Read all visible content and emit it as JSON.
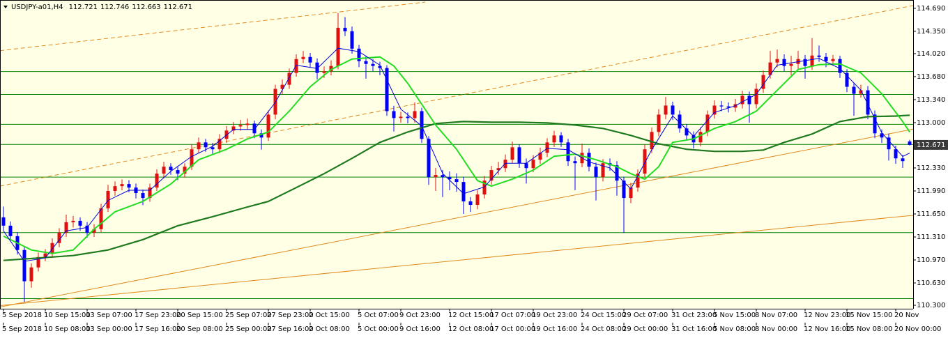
{
  "chart_data": {
    "type": "candlestick",
    "title": "USDJPY-a01,H4",
    "background": "#ffffe6",
    "up_color": "#e01010",
    "down_color": "#0000ff",
    "ylim": [
      110.249,
      114.813
    ],
    "yticks": [
      {
        "value": 114.69,
        "label": "114.690"
      },
      {
        "value": 114.35,
        "label": "114.350"
      },
      {
        "value": 114.02,
        "label": "114.020"
      },
      {
        "value": 113.68,
        "label": "113.680"
      },
      {
        "value": 113.34,
        "label": "113.340"
      },
      {
        "value": 113.0,
        "label": "113.000"
      },
      {
        "value": 112.33,
        "label": "112.330"
      },
      {
        "value": 111.99,
        "label": "111.990"
      },
      {
        "value": 111.65,
        "label": "111.650"
      },
      {
        "value": 111.31,
        "label": "111.310"
      },
      {
        "value": 110.97,
        "label": "110.970"
      },
      {
        "value": 110.63,
        "label": "110.630"
      },
      {
        "value": 110.3,
        "label": "110.300"
      }
    ],
    "categories_top": [
      "5 Sep 2018",
      null,
      null,
      null,
      null,
      null,
      "10 Sep 15:00",
      null,
      null,
      null,
      null,
      null,
      "13 Sep 07:00",
      null,
      null,
      null,
      null,
      null,
      null,
      "17 Sep 23:00",
      null,
      null,
      null,
      null,
      null,
      "20 Sep 15:00",
      null,
      null,
      null,
      null,
      null,
      null,
      "25 Sep 07:00",
      null,
      null,
      null,
      null,
      null,
      "27 Sep 23:00",
      null,
      null,
      null,
      null,
      null,
      "2 Oct 15:00",
      null,
      null,
      null,
      null,
      null,
      null,
      "5 Oct 07:00",
      null,
      null,
      null,
      null,
      null,
      "9 Oct 23:00",
      null,
      null,
      null,
      null,
      null,
      null,
      "12 Oct 15:00",
      null,
      null,
      null,
      null,
      null,
      "17 Oct 07:00",
      null,
      null,
      null,
      null,
      null,
      "19 Oct 23:00",
      null,
      null,
      null,
      null,
      null,
      null,
      "24 Oct 15:00",
      null,
      null,
      null,
      null,
      null,
      "29 Oct 07:00",
      null,
      null,
      null,
      null,
      null,
      null,
      "31 Oct 23:00",
      null,
      null,
      null,
      null,
      null,
      "5 Nov 15:00",
      null,
      null,
      null,
      null,
      null,
      "8 Nov 07:00",
      null,
      null,
      null,
      null,
      null,
      null,
      "12 Nov 23:00",
      null,
      null,
      null,
      null,
      null,
      "15 Nov 15:00",
      null,
      null,
      null,
      null,
      null,
      null,
      "20 Nov",
      null,
      null
    ],
    "categories": [
      "5 Sep 2018",
      null,
      null,
      null,
      null,
      null,
      "10 Sep 08:00",
      null,
      null,
      null,
      null,
      null,
      "13 Sep 00:00",
      null,
      null,
      null,
      null,
      null,
      null,
      "17 Sep 16:00",
      null,
      null,
      null,
      null,
      null,
      "20 Sep 08:00",
      null,
      null,
      null,
      null,
      null,
      null,
      "25 Sep 00:00",
      null,
      null,
      null,
      null,
      null,
      "27 Sep 16:00",
      null,
      null,
      null,
      null,
      null,
      "2 Oct 08:00",
      null,
      null,
      null,
      null,
      null,
      null,
      "5 Oct 00:00",
      null,
      null,
      null,
      null,
      null,
      "9 Oct 16:00",
      null,
      null,
      null,
      null,
      null,
      null,
      "12 Oct 08:00",
      null,
      null,
      null,
      null,
      null,
      "17 Oct 00:00",
      null,
      null,
      null,
      null,
      null,
      "19 Oct 16:00",
      null,
      null,
      null,
      null,
      null,
      null,
      "24 Oct 08:00",
      null,
      null,
      null,
      null,
      null,
      "29 Oct 00:00",
      null,
      null,
      null,
      null,
      null,
      null,
      "31 Oct 16:00",
      null,
      null,
      null,
      null,
      null,
      "5 Nov 08:00",
      null,
      null,
      null,
      null,
      null,
      "8 Nov 00:00",
      null,
      null,
      null,
      null,
      null,
      null,
      "12 Nov 16:00",
      null,
      null,
      null,
      null,
      null,
      "15 Nov 08:00",
      null,
      null,
      null,
      null,
      null,
      null,
      "20 Nov 00:00",
      null,
      null
    ],
    "open": [
      111.6,
      111.477,
      111.322,
      111.117,
      110.655,
      110.86,
      111.014,
      111.066,
      111.22,
      111.374,
      111.528,
      111.548,
      111.477,
      111.374,
      111.425,
      111.733,
      111.99,
      112.061,
      112.092,
      112.04,
      111.959,
      111.886,
      112.04,
      112.246,
      112.349,
      112.298,
      112.246,
      112.349,
      112.606,
      112.708,
      112.636,
      112.606,
      112.76,
      112.883,
      112.944,
      112.965,
      112.986,
      112.842,
      112.78,
      113.119,
      113.499,
      113.56,
      113.735,
      113.94,
      113.971,
      113.889,
      113.735,
      113.76,
      113.838,
      114.402,
      114.351,
      114.094,
      113.909,
      113.868,
      113.838,
      113.807,
      113.17,
      113.068,
      113.088,
      113.068,
      113.17,
      112.76,
      112.195,
      112.226,
      112.195,
      112.164,
      112.123,
      111.836,
      111.784,
      111.938,
      112.143,
      112.298,
      112.328,
      112.452,
      112.636,
      112.4,
      112.328,
      112.452,
      112.554,
      112.708,
      112.811,
      112.708,
      112.431,
      112.4,
      112.554,
      112.349,
      112.195,
      112.4,
      112.369,
      112.143,
      111.886,
      112.04,
      112.246,
      112.606,
      112.862,
      113.119,
      113.253,
      113.119,
      112.914,
      112.811,
      112.708,
      112.862,
      113.119,
      113.253,
      113.24,
      113.222,
      113.273,
      113.397,
      113.273,
      113.499,
      113.704,
      113.889,
      113.94,
      113.838,
      113.868,
      113.94,
      113.838,
      113.992,
      113.971,
      113.909,
      113.94,
      113.735,
      113.53,
      113.427,
      113.478,
      113.119,
      112.842,
      112.78,
      112.606,
      112.472,
      112.721
    ],
    "high": [
      111.76,
      111.54,
      111.38,
      111.17,
      110.92,
      111.08,
      111.13,
      111.29,
      111.44,
      111.64,
      111.62,
      111.6,
      111.53,
      111.5,
      111.8,
      112.08,
      112.13,
      112.16,
      112.15,
      112.1,
      112.01,
      112.1,
      112.31,
      112.42,
      112.4,
      112.35,
      112.4,
      112.68,
      112.78,
      112.76,
      112.7,
      112.83,
      112.95,
      113.01,
      113.04,
      113.06,
      113.03,
      112.9,
      113.18,
      113.56,
      113.64,
      113.8,
      114.01,
      114.06,
      114.03,
      113.95,
      113.83,
      113.92,
      114.62,
      114.56,
      114.42,
      114.15,
      113.99,
      113.94,
      113.9,
      113.85,
      113.25,
      113.16,
      113.15,
      113.3,
      113.22,
      112.8,
      112.33,
      112.3,
      112.28,
      112.25,
      112.2,
      111.9,
      112.0,
      112.21,
      112.36,
      112.42,
      112.53,
      112.72,
      112.68,
      112.47,
      112.52,
      112.63,
      112.77,
      112.88,
      112.86,
      112.76,
      112.5,
      112.69,
      112.62,
      112.41,
      112.46,
      112.47,
      112.43,
      112.2,
      112.11,
      112.31,
      112.68,
      112.93,
      113.2,
      113.38,
      113.31,
      113.18,
      112.98,
      112.87,
      112.93,
      113.18,
      113.33,
      113.32,
      113.3,
      113.35,
      113.47,
      113.46,
      113.58,
      113.77,
      114.06,
      114.08,
      114.01,
      113.99,
      114.06,
      114.0,
      114.25,
      114.14,
      114.03,
      114.0,
      113.99,
      113.79,
      113.59,
      113.56,
      113.54,
      113.18,
      112.9,
      112.84,
      112.66,
      112.52,
      112.746
    ],
    "low": [
      111.4,
      111.26,
      111.05,
      110.35,
      110.56,
      110.8,
      110.95,
      111.0,
      111.16,
      111.31,
      111.45,
      111.4,
      111.3,
      111.31,
      111.38,
      111.68,
      111.92,
      112.0,
      111.97,
      111.88,
      111.78,
      111.83,
      111.99,
      112.18,
      112.23,
      112.15,
      112.19,
      112.3,
      112.55,
      112.57,
      112.54,
      112.55,
      112.7,
      112.83,
      112.88,
      112.9,
      112.77,
      112.6,
      112.73,
      113.05,
      113.42,
      113.5,
      113.68,
      113.88,
      113.82,
      113.64,
      113.66,
      113.7,
      113.79,
      114.28,
      114.02,
      113.82,
      113.65,
      113.76,
      113.7,
      113.1,
      112.87,
      113.0,
      112.99,
      113.0,
      112.7,
      112.08,
      111.99,
      111.9,
      112.0,
      111.98,
      111.65,
      111.68,
      111.72,
      111.88,
      112.08,
      112.23,
      112.27,
      112.4,
      112.33,
      112.1,
      112.27,
      112.39,
      112.49,
      112.64,
      112.64,
      112.36,
      112.0,
      112.34,
      112.28,
      111.85,
      112.13,
      112.29,
      111.92,
      111.37,
      111.81,
      111.98,
      112.19,
      112.55,
      112.8,
      113.05,
      113.04,
      112.85,
      112.74,
      112.62,
      112.65,
      112.8,
      113.06,
      113.17,
      113.15,
      113.16,
      113.21,
      113.0,
      113.21,
      113.44,
      113.65,
      113.82,
      113.76,
      113.7,
      113.79,
      113.65,
      113.78,
      113.9,
      113.82,
      113.84,
      113.66,
      113.45,
      113.1,
      113.37,
      113.05,
      112.77,
      112.7,
      112.44,
      112.39,
      112.33,
      112.663
    ],
    "close": [
      111.477,
      111.322,
      111.117,
      110.655,
      110.86,
      111.014,
      111.066,
      111.22,
      111.374,
      111.528,
      111.548,
      111.477,
      111.374,
      111.425,
      111.733,
      111.99,
      112.061,
      112.092,
      112.04,
      111.959,
      111.886,
      112.04,
      112.246,
      112.349,
      112.298,
      112.246,
      112.349,
      112.606,
      112.708,
      112.636,
      112.606,
      112.76,
      112.883,
      112.944,
      112.965,
      112.986,
      112.842,
      112.78,
      113.119,
      113.499,
      113.56,
      113.735,
      113.94,
      113.971,
      113.889,
      113.735,
      113.76,
      113.838,
      114.402,
      114.351,
      114.094,
      113.909,
      113.868,
      113.838,
      113.807,
      113.17,
      113.068,
      113.088,
      113.068,
      113.17,
      112.76,
      112.195,
      112.226,
      112.195,
      112.164,
      112.123,
      111.836,
      111.784,
      111.938,
      112.143,
      112.298,
      112.328,
      112.452,
      112.636,
      112.4,
      112.328,
      112.452,
      112.554,
      112.708,
      112.811,
      112.708,
      112.431,
      112.4,
      112.554,
      112.349,
      112.195,
      112.4,
      112.369,
      112.143,
      111.886,
      112.04,
      112.246,
      112.606,
      112.862,
      113.119,
      113.253,
      113.119,
      112.914,
      112.811,
      112.708,
      112.862,
      113.119,
      113.253,
      113.24,
      113.222,
      113.273,
      113.397,
      113.273,
      113.499,
      113.704,
      113.889,
      113.94,
      113.838,
      113.868,
      113.94,
      113.838,
      113.992,
      113.971,
      113.909,
      113.94,
      113.735,
      113.53,
      113.427,
      113.478,
      113.119,
      112.842,
      112.78,
      112.606,
      112.472,
      112.431,
      112.671
    ],
    "levels": [
      113.756,
      113.417,
      112.975,
      112.678,
      112.195,
      111.374,
      110.399
    ],
    "level_color": "#008000",
    "trendlines": [
      {
        "color": "#e08a1e",
        "dashed": true,
        "x": [
          -0.5,
          60.5
        ],
        "values": [
          114.064,
          114.782
        ]
      },
      {
        "color": "#e08a1e",
        "dashed": true,
        "x": [
          -0.5,
          130.5
        ],
        "values": [
          112.062,
          114.731
        ]
      },
      {
        "color": "#e08a1e",
        "dashed": false,
        "x": [
          -0.5,
          130.5
        ],
        "values": [
          110.275,
          112.904
        ]
      },
      {
        "color": "#e08a1e",
        "dashed": false,
        "x": [
          -0.5,
          130.5
        ],
        "values": [
          110.295,
          111.63
        ]
      }
    ],
    "lines": [
      {
        "color": "#1f7a1f",
        "width": 2.2,
        "x": [
          0,
          10,
          15,
          20,
          25,
          30,
          35,
          38,
          42,
          46,
          50,
          54,
          58,
          62,
          66,
          70,
          74,
          78,
          82,
          86,
          90,
          94,
          98,
          102,
          106,
          109,
          112,
          116,
          120,
          124,
          128,
          130
        ],
        "values": [
          110.963,
          111.035,
          111.117,
          111.271,
          111.476,
          111.61,
          111.753,
          111.836,
          112.04,
          112.246,
          112.472,
          112.708,
          112.862,
          112.986,
          113.016,
          113.006,
          113.006,
          112.996,
          112.965,
          112.914,
          112.811,
          112.688,
          112.606,
          112.575,
          112.575,
          112.595,
          112.708,
          112.832,
          113.016,
          113.088,
          113.098,
          113.109
        ]
      },
      {
        "color": "#22dd22",
        "width": 2,
        "x": [
          0,
          4,
          7,
          10,
          13,
          16,
          20,
          24,
          28,
          32,
          35,
          38,
          41,
          44,
          47,
          50,
          54,
          56,
          58,
          60,
          62,
          65,
          68,
          70,
          73,
          76,
          79,
          82,
          85,
          88,
          90,
          92,
          94,
          96,
          99,
          102,
          105,
          108,
          111,
          114,
          117,
          120,
          123,
          126,
          129,
          130
        ],
        "values": [
          111.322,
          111.117,
          111.066,
          111.117,
          111.425,
          111.682,
          111.836,
          112.092,
          112.452,
          112.606,
          112.76,
          112.862,
          113.17,
          113.53,
          113.786,
          113.94,
          113.971,
          113.838,
          113.581,
          113.273,
          112.965,
          112.606,
          112.143,
          112.061,
          112.164,
          112.298,
          112.503,
          112.534,
          112.452,
          112.349,
          112.246,
          112.164,
          112.349,
          112.708,
          112.76,
          112.914,
          113.016,
          113.17,
          113.478,
          113.786,
          113.858,
          113.868,
          113.735,
          113.427,
          113.016,
          112.862
        ]
      },
      {
        "color": "#0000dd",
        "width": 1,
        "x": [
          0,
          3,
          6,
          9,
          12,
          15,
          18,
          21,
          24,
          27,
          30,
          33,
          36,
          39,
          42,
          45,
          48,
          51,
          54,
          57,
          60,
          63,
          66,
          69,
          72,
          75,
          78,
          81,
          84,
          87,
          90,
          93,
          96,
          99,
          102,
          105,
          108,
          111,
          114,
          117,
          120,
          123,
          126,
          129,
          130
        ],
        "values": [
          111.4,
          110.95,
          111.0,
          111.4,
          111.45,
          111.85,
          112.0,
          112.0,
          112.28,
          112.5,
          112.65,
          112.9,
          112.9,
          113.3,
          113.85,
          113.8,
          114.1,
          114.05,
          113.85,
          113.2,
          112.95,
          112.25,
          111.95,
          112.05,
          112.4,
          112.4,
          112.62,
          112.6,
          112.42,
          112.33,
          112.02,
          112.6,
          113.1,
          112.8,
          113.15,
          113.25,
          113.42,
          113.85,
          113.9,
          113.95,
          113.8,
          113.48,
          112.85,
          112.5,
          112.55
        ]
      }
    ]
  }
}
